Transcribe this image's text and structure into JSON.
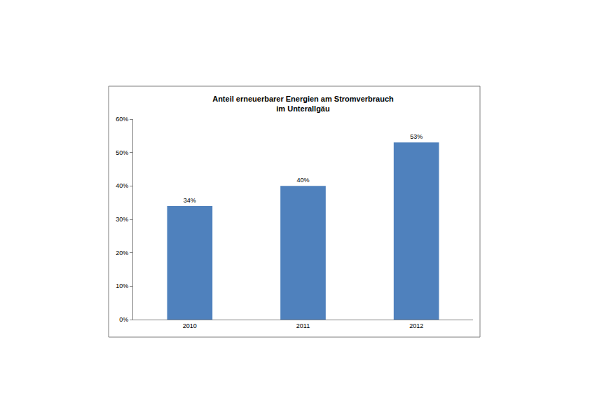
{
  "chart_data": {
    "type": "bar",
    "title": "Anteil erneuerbarer Energien am Stromverbrauch\nim Unterallgäu",
    "categories": [
      "2010",
      "2011",
      "2012"
    ],
    "values": [
      34,
      40,
      53
    ],
    "value_labels": [
      "34%",
      "40%",
      "53%"
    ],
    "data_labels": true,
    "color": "#4f81bd",
    "ylim": [
      0,
      60
    ],
    "yticks": [
      {
        "value": 0,
        "label": "0%"
      },
      {
        "value": 10,
        "label": "10%"
      },
      {
        "value": 20,
        "label": "20%"
      },
      {
        "value": 30,
        "label": "30%"
      },
      {
        "value": 40,
        "label": "40%"
      },
      {
        "value": 50,
        "label": "50%"
      },
      {
        "value": 60,
        "label": "60%"
      }
    ],
    "grid": false
  }
}
